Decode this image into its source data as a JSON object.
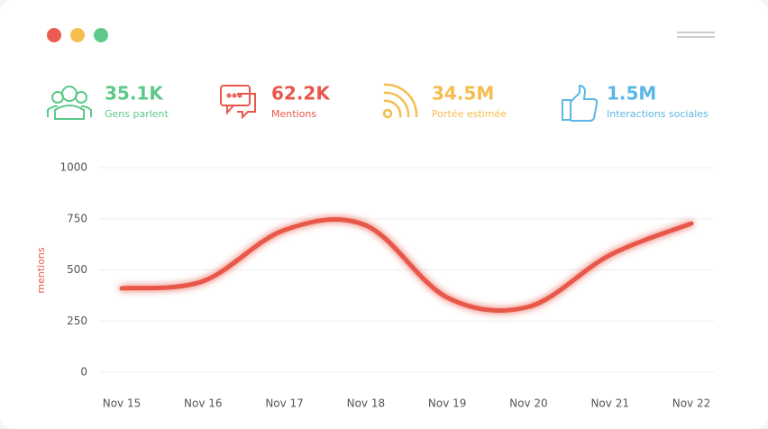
{
  "stats": [
    {
      "value": "35.1K",
      "label": "Gens parlent",
      "color": "#5cc98a"
    },
    {
      "value": "62.2K",
      "label": "Mentions",
      "color": "#e8584a"
    },
    {
      "value": "34.5M",
      "label": "Portée estimée",
      "color": "#f5bd4f"
    },
    {
      "value": "1.5M",
      "label": "Interactions sociales",
      "color": "#5bb7e5"
    }
  ],
  "chart_data": {
    "type": "line",
    "y_label": "mentions",
    "categories": [
      "Nov 15",
      "Nov 16",
      "Nov 17",
      "Nov 18",
      "Nov 19",
      "Nov 20",
      "Nov 21",
      "Nov 22"
    ],
    "series": [
      {
        "name": "mentions",
        "color": "#e8584a",
        "values": [
          410,
          445,
          695,
          718,
          365,
          320,
          573,
          727
        ]
      }
    ],
    "ylim": [
      0,
      1000
    ],
    "yticks": [
      0,
      250,
      500,
      750,
      1000
    ],
    "grid": true
  }
}
